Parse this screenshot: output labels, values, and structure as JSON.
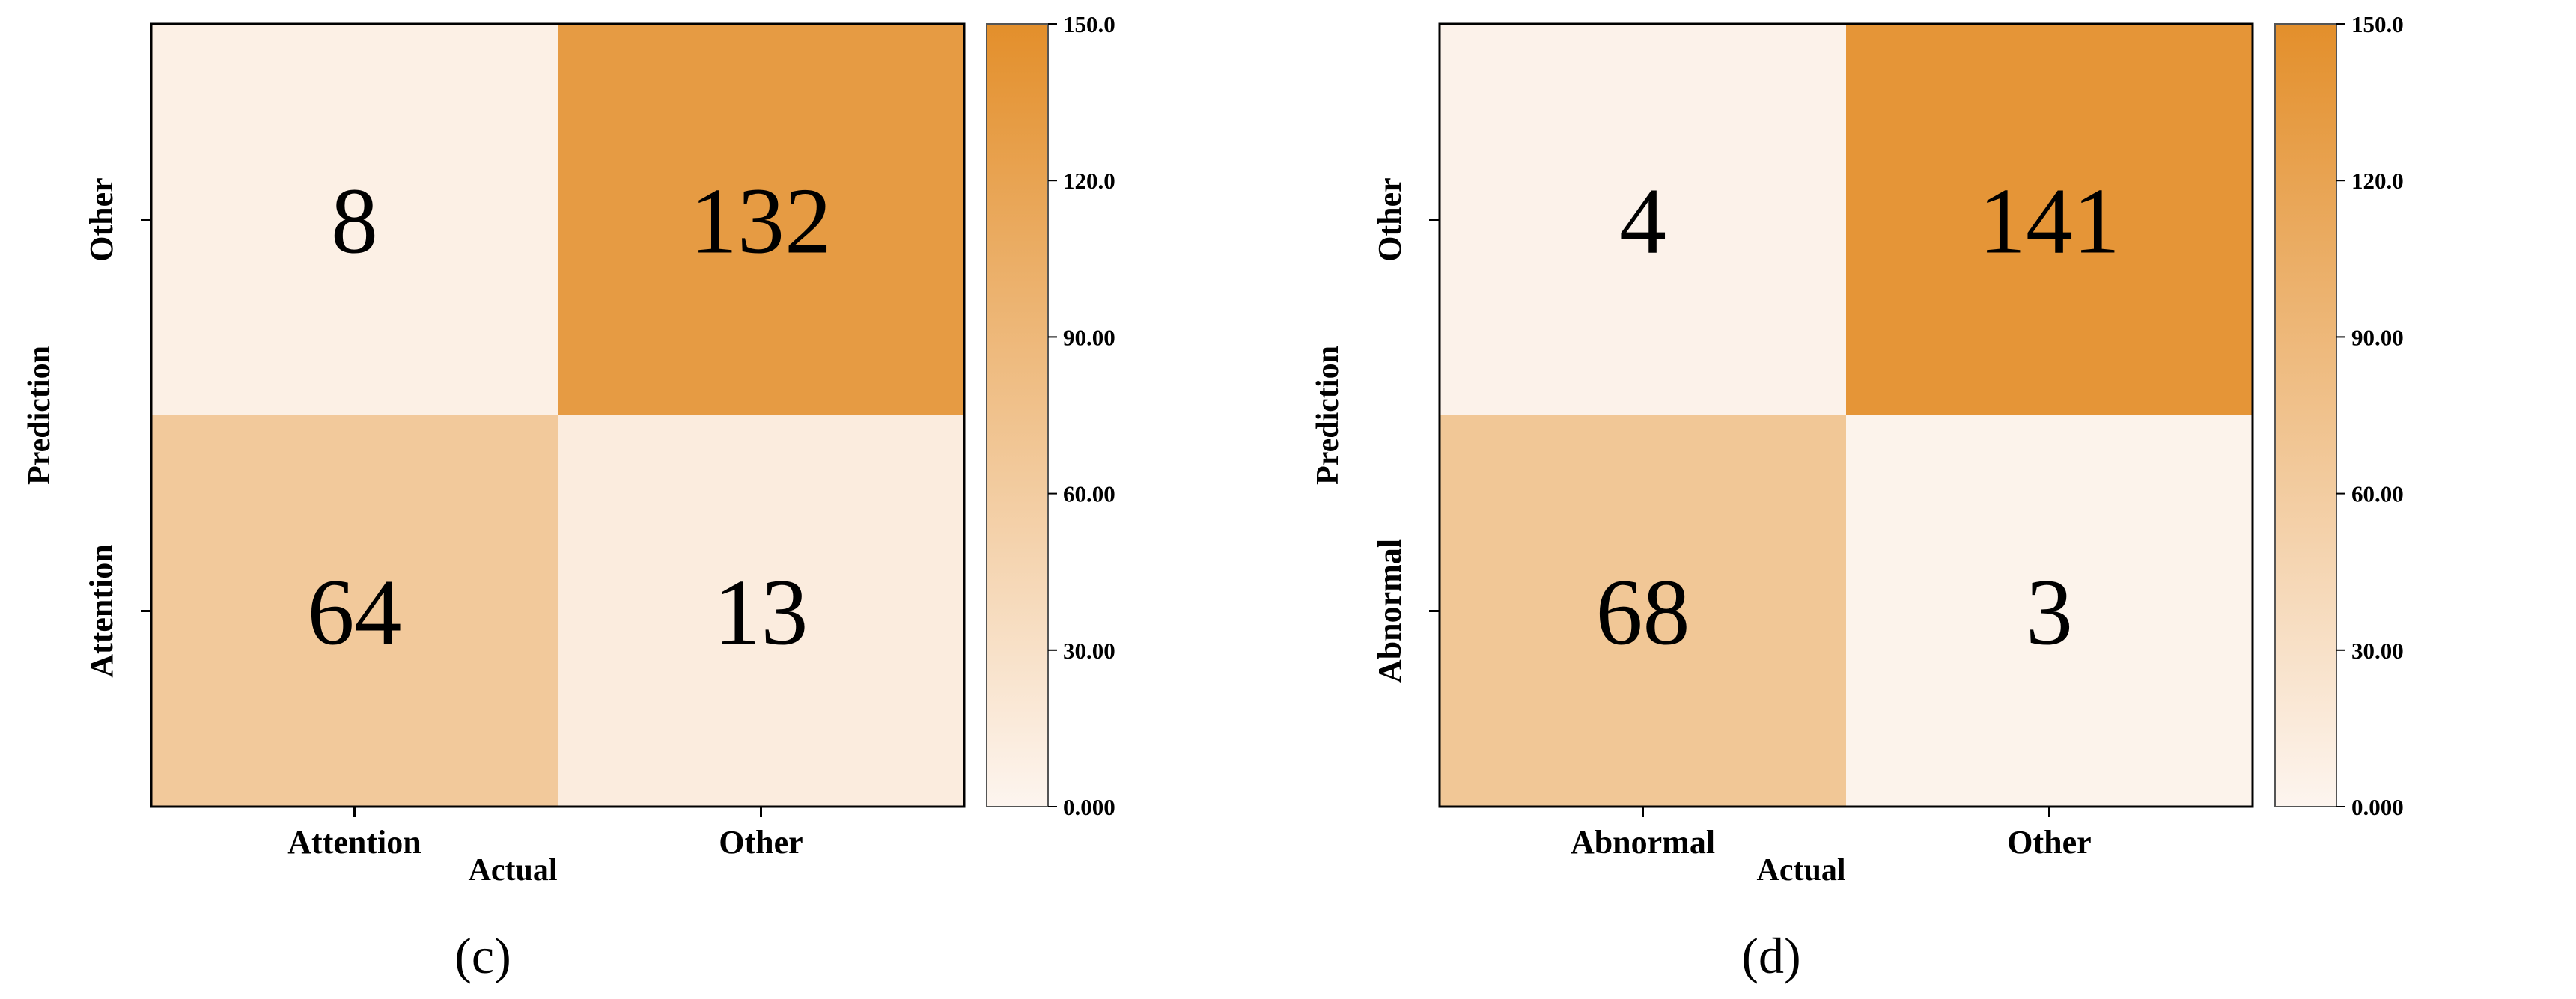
{
  "chart_data": [
    {
      "type": "heatmap",
      "panel_label": "(c)",
      "xlabel": "Actual",
      "ylabel": "Prediction",
      "x_categories": [
        "Attention",
        "Other"
      ],
      "y_categories": [
        "Other",
        "Attention"
      ],
      "matrix": [
        [
          8,
          132
        ],
        [
          64,
          13
        ]
      ],
      "colorbar": {
        "min": 0,
        "max": 150,
        "ticks": [
          0,
          30,
          60,
          90,
          120,
          150
        ],
        "tick_labels": [
          "0.000",
          "30.00",
          "60.00",
          "90.00",
          "120.0",
          "150.0"
        ],
        "colors": [
          "#fdf5ef",
          "#e38f2b"
        ]
      }
    },
    {
      "type": "heatmap",
      "panel_label": "(d)",
      "xlabel": "Actual",
      "ylabel": "Prediction",
      "x_categories": [
        "Abnormal",
        "Other"
      ],
      "y_categories": [
        "Other",
        "Abnormal"
      ],
      "matrix": [
        [
          4,
          141
        ],
        [
          68,
          3
        ]
      ],
      "colorbar": {
        "min": 0,
        "max": 150,
        "ticks": [
          0,
          30,
          60,
          90,
          120,
          150
        ],
        "tick_labels": [
          "0.000",
          "30.00",
          "60.00",
          "90.00",
          "120.0",
          "150.0"
        ],
        "colors": [
          "#fdf5ef",
          "#e38f2b"
        ]
      }
    }
  ]
}
